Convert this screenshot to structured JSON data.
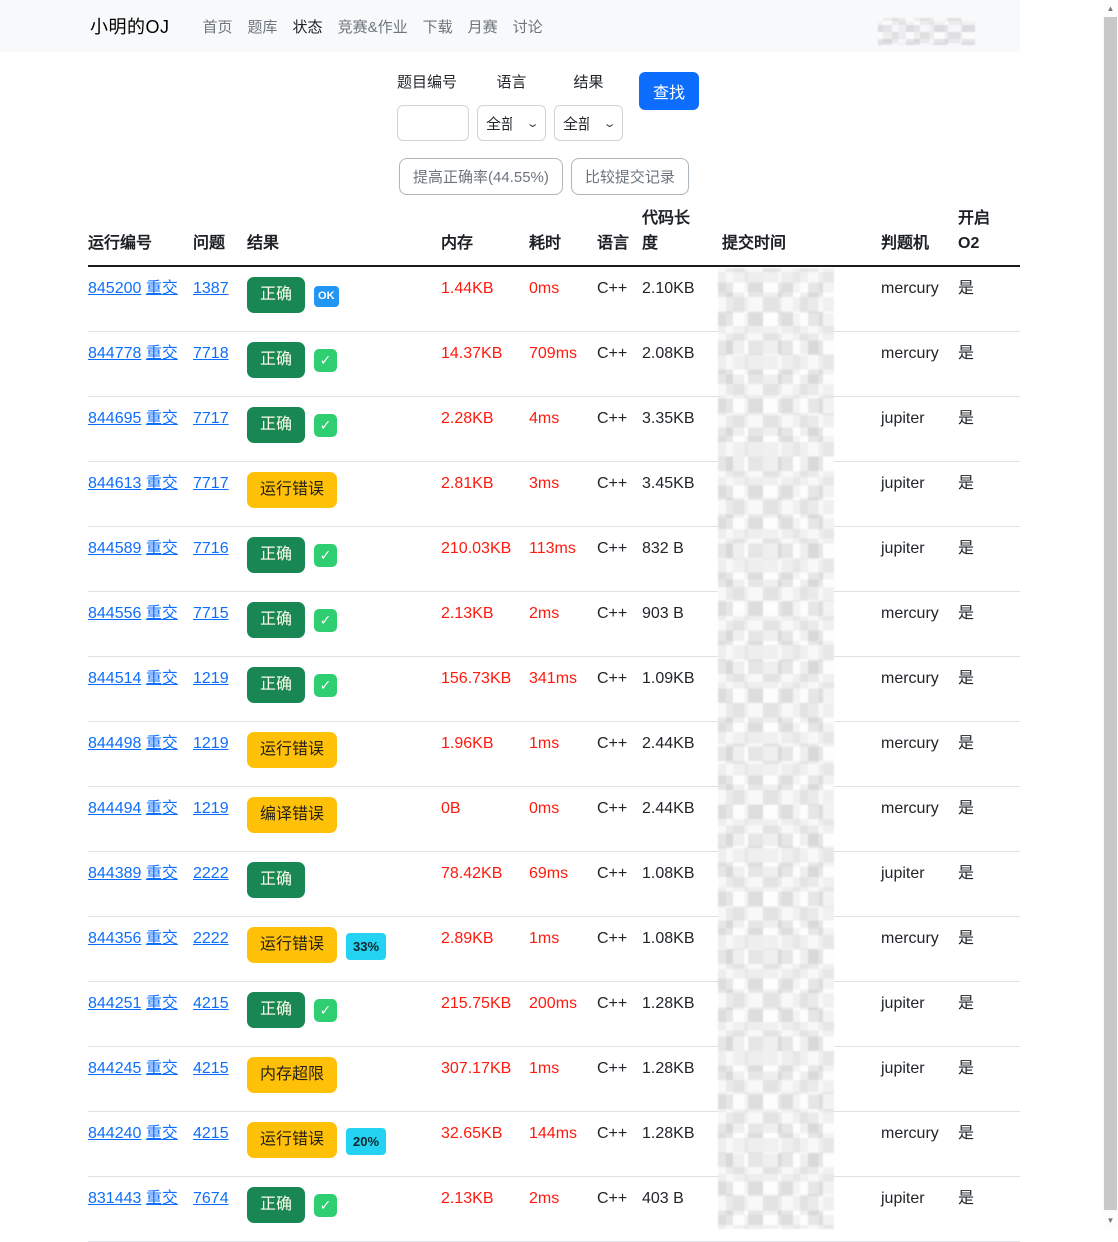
{
  "navbar": {
    "brand": "小明的OJ",
    "items": [
      {
        "label": "首页",
        "active": false
      },
      {
        "label": "题库",
        "active": false
      },
      {
        "label": "状态",
        "active": true
      },
      {
        "label": "竞赛&作业",
        "active": false
      },
      {
        "label": "下载",
        "active": false
      },
      {
        "label": "月赛",
        "active": false
      },
      {
        "label": "讨论",
        "active": false
      }
    ]
  },
  "filters": {
    "problem_label": "题目编号",
    "problem_value": "",
    "language_label": "语言",
    "language_value": "全部",
    "result_label": "结果",
    "result_value": "全部",
    "search_button": "查找"
  },
  "actions": {
    "improve_rate_button": "提高正确率(44.55%)",
    "compare_button": "比较提交记录"
  },
  "table": {
    "headers": [
      "运行编号",
      "问题",
      "结果",
      "内存",
      "耗时",
      "语言",
      "代码长度",
      "提交时间",
      "判题机",
      "开启O2"
    ],
    "resubmit_label": "重交",
    "rows": [
      {
        "run_id": "845200",
        "problem": "1387",
        "result": "正确",
        "result_type": "success",
        "extra_type": "ok",
        "extra": "OK",
        "memory": "1.44KB",
        "time": "0ms",
        "language": "C++",
        "code_length": "2.10KB",
        "judger": "mercury",
        "o2": "是"
      },
      {
        "run_id": "844778",
        "problem": "7718",
        "result": "正确",
        "result_type": "success",
        "extra_type": "check",
        "extra": "✓",
        "memory": "14.37KB",
        "time": "709ms",
        "language": "C++",
        "code_length": "2.08KB",
        "judger": "mercury",
        "o2": "是"
      },
      {
        "run_id": "844695",
        "problem": "7717",
        "result": "正确",
        "result_type": "success",
        "extra_type": "check",
        "extra": "✓",
        "memory": "2.28KB",
        "time": "4ms",
        "language": "C++",
        "code_length": "3.35KB",
        "judger": "jupiter",
        "o2": "是"
      },
      {
        "run_id": "844613",
        "problem": "7717",
        "result": "运行错误",
        "result_type": "warning",
        "extra_type": null,
        "extra": "",
        "memory": "2.81KB",
        "time": "3ms",
        "language": "C++",
        "code_length": "3.45KB",
        "judger": "jupiter",
        "o2": "是"
      },
      {
        "run_id": "844589",
        "problem": "7716",
        "result": "正确",
        "result_type": "success",
        "extra_type": "check",
        "extra": "✓",
        "memory": "210.03KB",
        "time": "113ms",
        "language": "C++",
        "code_length": "832 B",
        "judger": "jupiter",
        "o2": "是"
      },
      {
        "run_id": "844556",
        "problem": "7715",
        "result": "正确",
        "result_type": "success",
        "extra_type": "check",
        "extra": "✓",
        "memory": "2.13KB",
        "time": "2ms",
        "language": "C++",
        "code_length": "903 B",
        "judger": "mercury",
        "o2": "是"
      },
      {
        "run_id": "844514",
        "problem": "1219",
        "result": "正确",
        "result_type": "success",
        "extra_type": "check",
        "extra": "✓",
        "memory": "156.73KB",
        "time": "341ms",
        "language": "C++",
        "code_length": "1.09KB",
        "judger": "mercury",
        "o2": "是"
      },
      {
        "run_id": "844498",
        "problem": "1219",
        "result": "运行错误",
        "result_type": "warning",
        "extra_type": null,
        "extra": "",
        "memory": "1.96KB",
        "time": "1ms",
        "language": "C++",
        "code_length": "2.44KB",
        "judger": "mercury",
        "o2": "是"
      },
      {
        "run_id": "844494",
        "problem": "1219",
        "result": "编译错误",
        "result_type": "warning",
        "extra_type": null,
        "extra": "",
        "memory": "0B",
        "time": "0ms",
        "language": "C++",
        "code_length": "2.44KB",
        "judger": "mercury",
        "o2": "是"
      },
      {
        "run_id": "844389",
        "problem": "2222",
        "result": "正确",
        "result_type": "success",
        "extra_type": null,
        "extra": "",
        "memory": "78.42KB",
        "time": "69ms",
        "language": "C++",
        "code_length": "1.08KB",
        "judger": "jupiter",
        "o2": "是"
      },
      {
        "run_id": "844356",
        "problem": "2222",
        "result": "运行错误",
        "result_type": "warning",
        "extra_type": "percent",
        "extra": "33%",
        "memory": "2.89KB",
        "time": "1ms",
        "language": "C++",
        "code_length": "1.08KB",
        "judger": "mercury",
        "o2": "是"
      },
      {
        "run_id": "844251",
        "problem": "4215",
        "result": "正确",
        "result_type": "success",
        "extra_type": "check",
        "extra": "✓",
        "memory": "215.75KB",
        "time": "200ms",
        "language": "C++",
        "code_length": "1.28KB",
        "judger": "jupiter",
        "o2": "是"
      },
      {
        "run_id": "844245",
        "problem": "4215",
        "result": "内存超限",
        "result_type": "warning",
        "extra_type": null,
        "extra": "",
        "memory": "307.17KB",
        "time": "1ms",
        "language": "C++",
        "code_length": "1.28KB",
        "judger": "jupiter",
        "o2": "是"
      },
      {
        "run_id": "844240",
        "problem": "4215",
        "result": "运行错误",
        "result_type": "warning",
        "extra_type": "percent",
        "extra": "20%",
        "memory": "32.65KB",
        "time": "144ms",
        "language": "C++",
        "code_length": "1.28KB",
        "judger": "mercury",
        "o2": "是"
      },
      {
        "run_id": "831443",
        "problem": "7674",
        "result": "正确",
        "result_type": "success",
        "extra_type": "check",
        "extra": "✓",
        "memory": "2.13KB",
        "time": "2ms",
        "language": "C++",
        "code_length": "403 B",
        "judger": "jupiter",
        "o2": "是"
      }
    ]
  },
  "colors": {
    "accent_blue": "#0d6efd",
    "badge_success": "#198754",
    "badge_warning": "#ffc107",
    "badge_ok_blue": "#2196f3",
    "badge_check_green": "#2ece71",
    "badge_percent_cyan": "#24d3f2",
    "value_red": "#fe1a0d",
    "navbar_bg": "#f8f9fa"
  }
}
